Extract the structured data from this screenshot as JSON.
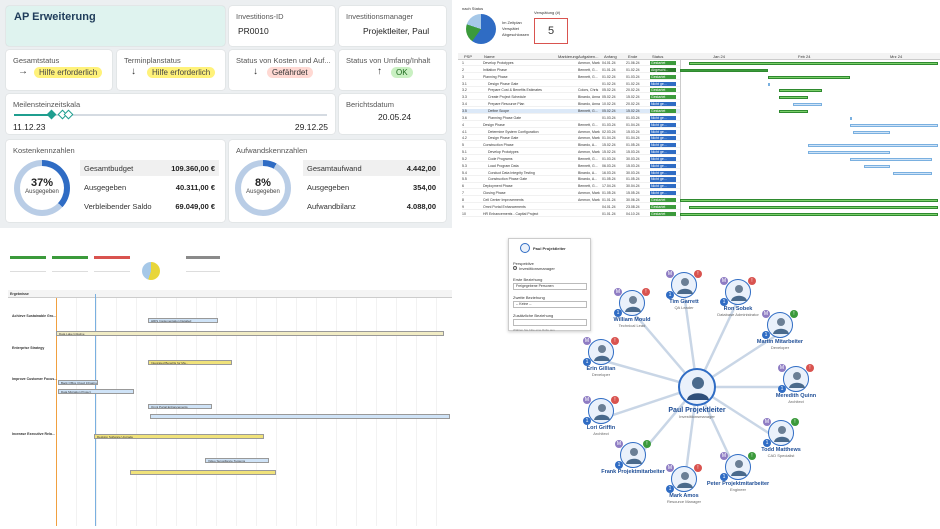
{
  "dashboard": {
    "title": "AP Erweiterung",
    "investment_id_label": "Investitions-ID",
    "investment_id": "PR0010",
    "manager_label": "Investitionsmanager",
    "manager": "Projektleiter, Paul",
    "status": [
      {
        "label": "Gesamtstatus",
        "value": "Hilfe erforderlich",
        "arrow": "→",
        "tone": "yellow"
      },
      {
        "label": "Terminplanstatus",
        "value": "Hilfe erforderlich",
        "arrow": "↓",
        "tone": "yellow"
      },
      {
        "label": "Status von Kosten und Auf...",
        "value": "Gefährdet",
        "arrow": "↓",
        "tone": "red"
      },
      {
        "label": "Status von Umfang/Inhalt",
        "value": "OK",
        "arrow": "↑",
        "tone": "green"
      }
    ],
    "milestone_label": "Meilensteinzeitskala",
    "milestone_start": "11.12.23",
    "milestone_end": "29.12.25",
    "report_label": "Berichtsdatum",
    "report_date": "20.05.24",
    "cost": {
      "label": "Kostenkennzahlen",
      "percent": "37%",
      "percent_value": 37,
      "ring_text": "Ausgegeben",
      "rows": [
        {
          "k": "Gesamtbudget",
          "v": "109.360,00 €"
        },
        {
          "k": "Ausgegeben",
          "v": "40.311,00 €"
        },
        {
          "k": "Verbleibender Saldo",
          "v": "69.049,00 €"
        }
      ]
    },
    "effort": {
      "label": "Aufwandskennzahlen",
      "percent": "8%",
      "percent_value": 8,
      "ring_text": "Ausgegeben",
      "rows": [
        {
          "k": "Gesamtaufwand",
          "v": "4.442,00"
        },
        {
          "k": "Ausgegeben",
          "v": "354,00"
        },
        {
          "k": "Aufwandbilanz",
          "v": "4.088,00"
        }
      ]
    },
    "colors": {
      "accent": "#2f6cc4",
      "ring_track": "#b9cde6",
      "title_bg": "#dff3ef"
    }
  },
  "gantt": {
    "kpi_label": "nach Status",
    "late_label": "Verspätung (#)",
    "late_value": "5",
    "legend": [
      "Im Zeitplan",
      "Verspätet",
      "Abgeschlossen"
    ],
    "columns": [
      "PSP",
      "Name",
      "Markierung",
      "Aufgaben...",
      "Anfang",
      "Ende",
      "Status"
    ],
    "months": [
      "Jan 24",
      "Feb 24",
      "Mrz 24"
    ],
    "rows": [
      {
        "psp": "1",
        "name": "Develop Prototypes",
        "owner": "Ammon, Mark",
        "start": "04.01.24",
        "end": "21.06.24",
        "status": "Gestartet"
      },
      {
        "psp": "2",
        "name": "Initiation Phase",
        "owner": "Bennett, G...",
        "start": "01.01.24",
        "end": "01.02.24",
        "status": "Abgeschl..."
      },
      {
        "psp": "3",
        "name": "Planning Phase",
        "owner": "Bennett, G...",
        "start": "01.02.24",
        "end": "01.03.24",
        "status": "Gestartet"
      },
      {
        "psp": "3.1",
        "name": "Design Phase Gate",
        "owner": "",
        "start": "01.02.24",
        "end": "01.02.24",
        "status": "Nicht ge..."
      },
      {
        "psp": "3.2",
        "name": "Prepare Cost & Benefits Estimates",
        "owner": "Colors, Chris",
        "start": "05.02.24",
        "end": "20.02.24",
        "status": "Gestartet"
      },
      {
        "psp": "3.3",
        "name": "Create Project Schedule",
        "owner": "Binardo, Anna",
        "start": "05.02.24",
        "end": "15.02.24",
        "status": "Gestartet"
      },
      {
        "psp": "3.4",
        "name": "Prepare Resource Plan",
        "owner": "Binardo, Anna",
        "start": "10.02.24",
        "end": "20.02.24",
        "status": "Nicht ge..."
      },
      {
        "psp": "3.5",
        "name": "Define Scope",
        "owner": "Bennett, G...",
        "start": "05.02.24",
        "end": "15.02.24",
        "status": "Gestartet"
      },
      {
        "psp": "3.6",
        "name": "Planning Phase Gate",
        "owner": "",
        "start": "01.03.24",
        "end": "01.03.24",
        "status": "Nicht ge..."
      },
      {
        "psp": "4",
        "name": "Design Phase",
        "owner": "Bennett, G...",
        "start": "01.03.24",
        "end": "01.04.24",
        "status": "Nicht ge..."
      },
      {
        "psp": "4.1",
        "name": "Determine System Configuration",
        "owner": "Ammon, Mark",
        "start": "02.03.24",
        "end": "15.03.24",
        "status": "Nicht ge..."
      },
      {
        "psp": "4.2",
        "name": "Design Phase Gate",
        "owner": "Ammon, Mark",
        "start": "01.04.24",
        "end": "01.04.24",
        "status": "Nicht ge..."
      },
      {
        "psp": "5",
        "name": "Construction Phase",
        "owner": "Binardo, A...",
        "start": "15.02.24",
        "end": "01.05.24",
        "status": "Nicht ge..."
      },
      {
        "psp": "5.1",
        "name": "Develop Prototypes",
        "owner": "Ammon, Mark",
        "start": "15.02.24",
        "end": "15.03.24",
        "status": "Nicht ge..."
      },
      {
        "psp": "5.2",
        "name": "Code Programs",
        "owner": "Bennett, G...",
        "start": "01.03.24",
        "end": "30.03.24",
        "status": "Nicht ge..."
      },
      {
        "psp": "5.3",
        "name": "Load Program Data",
        "owner": "Bennett, G...",
        "start": "06.03.24",
        "end": "15.03.24",
        "status": "Nicht ge..."
      },
      {
        "psp": "5.4",
        "name": "Conduct Data Integrity Testing",
        "owner": "Binardo, A...",
        "start": "16.03.24",
        "end": "30.03.24",
        "status": "Nicht ge..."
      },
      {
        "psp": "5.5",
        "name": "Construction Phase Gate",
        "owner": "Binardo, A...",
        "start": "01.05.24",
        "end": "01.05.24",
        "status": "Nicht ge..."
      },
      {
        "psp": "6",
        "name": "Deployment Phase",
        "owner": "Bennett, G...",
        "start": "17.04.24",
        "end": "30.04.24",
        "status": "Nicht ge..."
      },
      {
        "psp": "7",
        "name": "Closing Phase",
        "owner": "Ammon, Mark",
        "start": "01.05.24",
        "end": "15.05.24",
        "status": "Nicht ge..."
      },
      {
        "psp": "8",
        "name": "Cell Center Improvements",
        "owner": "Ammon, Mark",
        "start": "01.01.24",
        "end": "30.06.24",
        "status": "Gestartet"
      },
      {
        "psp": "9",
        "name": "Omni Portal Enhancements",
        "owner": "",
        "start": "04.01.24",
        "end": "23.08.24",
        "status": "Gestartet"
      },
      {
        "psp": "10",
        "name": "HR Enhancements - Capital Project",
        "owner": "",
        "start": "01.01.24",
        "end": "04.10.24",
        "status": "Gestartet"
      }
    ],
    "status_colors": {
      "Gestartet": "#3b9a3b",
      "Abgeschl...": "#2a7a2a",
      "Nicht ge...": "#2f6cc4"
    }
  },
  "portfolio": {
    "header": "Ergebnisse",
    "groups": [
      {
        "name": "Achieve Sustainable Gro...",
        "bars": [
          "HRIS Implementation Detailed",
          "Data Lake Initiative"
        ]
      },
      {
        "name": "Enterprise Strategy",
        "bars": [
          "Integrated Benefits for Ma..."
        ]
      },
      {
        "name": "Improve Customer Focus...",
        "bars": [
          "Back Office Cloud Infrastructure",
          "Data Migration Project",
          "Omni Portal Enhancements"
        ]
      },
      {
        "name": "Increase Executive Rela...",
        "bars": [
          "Desktop Software Upgrade",
          "Video Surveillance Systems"
        ]
      }
    ]
  },
  "network": {
    "panel": {
      "title": "Paul Projektleiter",
      "perspective_label": "Perspektive",
      "perspective_value": "Investitionsmanager",
      "first_relation_label": "Erste Beziehung",
      "first_relation_value": "Freigegebene Personen",
      "second_relation_label": "Zweite Beziehung",
      "second_relation_value": "-- Keine --",
      "extra_label": "Zusätzliche Beziehung",
      "hint": "Wählen Sie bitte eine Rolle aus"
    },
    "center": {
      "name": "Paul Projektleiter",
      "role": "Investitionsmanager"
    },
    "people": [
      {
        "name": "Tim Garrett",
        "role": "QA Leader"
      },
      {
        "name": "Ron Sobek",
        "role": "Database Administrator"
      },
      {
        "name": "Martin Mitarbeiter",
        "role": "Developer"
      },
      {
        "name": "Meredith Quinn",
        "role": "Architect"
      },
      {
        "name": "Todd Matthews",
        "role": "CAD Specialist"
      },
      {
        "name": "Peter Projektmitarbeiter",
        "role": "Engineer"
      },
      {
        "name": "Mark Amos",
        "role": "Resource Manager"
      },
      {
        "name": "Frank Projektmitarbeiter",
        "role": ""
      },
      {
        "name": "Lori Griffin",
        "role": "Architect"
      },
      {
        "name": "Erin Gillian",
        "role": "Developer"
      },
      {
        "name": "William Mould",
        "role": "Technical Lead"
      }
    ]
  }
}
